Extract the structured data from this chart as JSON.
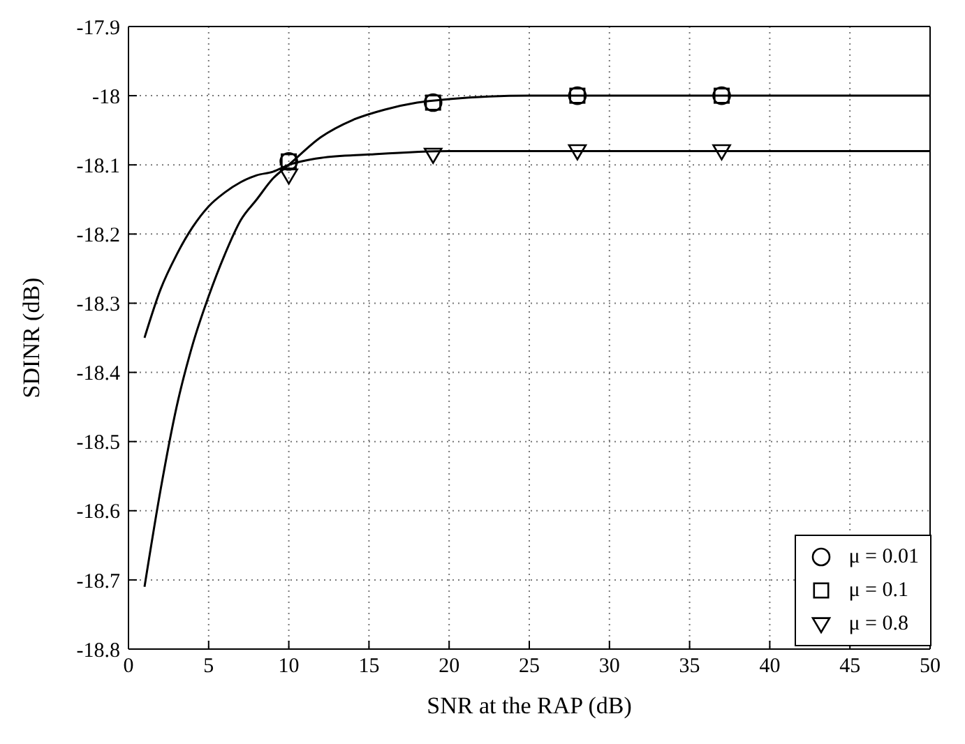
{
  "chart_data": {
    "type": "scatter",
    "xlabel": "SNR at the RAP (dB)",
    "ylabel": "SDINR (dB)",
    "xlim": [
      0,
      50
    ],
    "xticks": [
      0,
      5,
      10,
      15,
      20,
      25,
      30,
      35,
      40,
      45,
      50
    ],
    "ylim": [
      -18.8,
      -17.9
    ],
    "yticks": [
      -18.8,
      -18.7,
      -18.6,
      -18.5,
      -18.4,
      -18.3,
      -18.2,
      -18.1,
      -18,
      -17.9
    ],
    "grid": true,
    "legend": "bottom right",
    "series": [
      {
        "name": "μ = 0.01",
        "color": "#000000",
        "marker": "circle",
        "x": [
          10,
          19,
          28,
          37
        ],
        "values": [
          -18.095,
          -18.01,
          -18.0,
          -18.0
        ]
      },
      {
        "name": "μ = 0.1",
        "color": "#000000",
        "marker": "square",
        "x": [
          10,
          19,
          28,
          37
        ],
        "values": [
          -18.095,
          -18.01,
          -18.0,
          -18.0
        ]
      },
      {
        "name": "μ = 0.8",
        "color": "#000000",
        "marker": "triangle",
        "x": [
          10,
          19,
          28,
          37
        ],
        "values": [
          -18.115,
          -18.085,
          -18.08,
          -18.08
        ]
      },
      {
        "type": "line",
        "color": "#000000",
        "marker": "none",
        "line_style": "solid",
        "x": [
          1,
          2,
          3,
          4,
          5,
          6,
          7,
          8,
          9,
          10,
          12,
          14,
          16,
          18,
          20,
          25,
          30,
          50
        ],
        "values": [
          -18.71,
          -18.57,
          -18.45,
          -18.36,
          -18.29,
          -18.23,
          -18.18,
          -18.15,
          -18.12,
          -18.1,
          -18.06,
          -18.035,
          -18.02,
          -18.01,
          -18.005,
          -18.0,
          -18.0,
          -18.0
        ]
      },
      {
        "type": "line",
        "color": "#000000",
        "marker": "none",
        "line_style": "solid",
        "x": [
          1,
          2,
          3,
          4,
          5,
          6,
          7,
          8,
          9,
          10,
          12,
          15,
          20,
          30,
          50
        ],
        "values": [
          -18.35,
          -18.28,
          -18.23,
          -18.19,
          -18.16,
          -18.14,
          -18.125,
          -18.115,
          -18.11,
          -18.1,
          -18.09,
          -18.085,
          -18.08,
          -18.08,
          -18.08
        ]
      }
    ]
  }
}
